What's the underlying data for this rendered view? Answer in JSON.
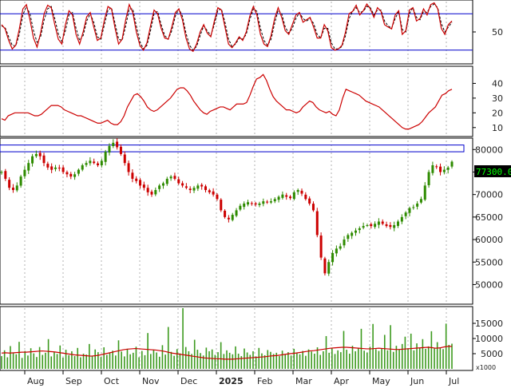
{
  "chart_data": [
    {
      "type": "line",
      "panel": "stochastic",
      "ylim": [
        0,
        100
      ],
      "yticks": [
        50
      ],
      "reference_lines": [
        80,
        20
      ],
      "series": [
        {
          "values": [
            62,
            55,
            36,
            22,
            28,
            55,
            88,
            95,
            70,
            40,
            25,
            48,
            80,
            94,
            90,
            62,
            38,
            30,
            62,
            85,
            78,
            46,
            30,
            50,
            75,
            82,
            58,
            36,
            40,
            70,
            92,
            88,
            56,
            30,
            38,
            70,
            95,
            82,
            50,
            28,
            20,
            32,
            60,
            86,
            80,
            56,
            40,
            38,
            58,
            82,
            88,
            70,
            40,
            22,
            18,
            30,
            50,
            62,
            48,
            42,
            68,
            90,
            86,
            58,
            30,
            24,
            32,
            42,
            36,
            50,
            76,
            92,
            78,
            46,
            30,
            26,
            44,
            72,
            90,
            74,
            52,
            46,
            62,
            78,
            82,
            66,
            70,
            74,
            58,
            40,
            40,
            62,
            52,
            24,
            20,
            22,
            28,
            50,
            80,
            84,
            94,
            78,
            85,
            96,
            88,
            74,
            90,
            84,
            62,
            58,
            55,
            78,
            85,
            46,
            52,
            86,
            90,
            68,
            72,
            88,
            78,
            95,
            98,
            88,
            56,
            46,
            62,
            68
          ]
        },
        {
          "values": [
            60,
            57,
            42,
            28,
            27,
            46,
            78,
            92,
            80,
            52,
            33,
            42,
            70,
            88,
            92,
            72,
            47,
            34,
            52,
            78,
            82,
            56,
            36,
            44,
            68,
            80,
            66,
            42,
            38,
            62,
            86,
            90,
            64,
            38,
            36,
            60,
            88,
            88,
            60,
            34,
            22,
            28,
            52,
            80,
            84,
            62,
            44,
            38,
            52,
            76,
            88,
            76,
            48,
            28,
            20,
            26,
            44,
            60,
            52,
            44,
            62,
            86,
            88,
            66,
            38,
            26,
            30,
            40,
            38,
            46,
            70,
            88,
            84,
            56,
            36,
            28,
            38,
            64,
            86,
            80,
            58,
            48,
            56,
            72,
            82,
            72,
            68,
            72,
            64,
            46,
            40,
            56,
            56,
            32,
            22,
            22,
            26,
            44,
            72,
            84,
            90,
            82,
            84,
            92,
            90,
            78,
            86,
            86,
            68,
            60,
            56,
            72,
            84,
            54,
            50,
            80,
            90,
            74,
            70,
            84,
            82,
            92,
            96,
            90,
            64,
            50,
            58,
            66
          ]
        }
      ]
    },
    {
      "type": "line",
      "panel": "indicator",
      "ylim": [
        5,
        50
      ],
      "yticks": [
        10,
        20,
        30,
        40
      ],
      "series": [
        {
          "values": [
            16,
            15,
            18,
            19,
            20,
            20,
            20,
            20,
            20,
            19,
            18,
            18,
            19,
            21,
            23,
            25,
            25,
            25,
            24,
            22,
            21,
            20,
            19,
            18,
            18,
            17,
            16,
            15,
            14,
            13,
            13,
            14,
            15,
            13,
            12,
            12,
            14,
            18,
            24,
            28,
            32,
            33,
            31,
            28,
            24,
            22,
            21,
            22,
            24,
            26,
            28,
            30,
            33,
            36,
            37,
            37,
            35,
            32,
            28,
            25,
            22,
            20,
            19,
            21,
            22,
            23,
            24,
            24,
            23,
            22,
            24,
            26,
            26,
            26,
            27,
            32,
            38,
            43,
            44,
            46,
            42,
            36,
            31,
            28,
            26,
            24,
            22,
            22,
            21,
            20,
            21,
            24,
            26,
            28,
            27,
            24,
            22,
            21,
            20,
            21,
            19,
            18,
            22,
            30,
            36,
            35,
            34,
            33,
            32,
            30,
            28,
            27,
            26,
            25,
            24,
            22,
            20,
            18,
            16,
            14,
            12,
            10,
            9,
            9,
            10,
            11,
            12,
            14,
            17,
            20,
            22,
            24,
            28,
            32,
            33,
            35,
            36
          ]
        }
      ]
    },
    {
      "type": "line",
      "panel": "price",
      "ylim": [
        46000,
        82000
      ],
      "yticks": [
        50000,
        55000,
        60000,
        65000,
        70000,
        75000,
        80000
      ],
      "last_price": "77300.00",
      "resistance_zone": [
        79500,
        81000
      ],
      "series": [
        {
          "values": [
            75000,
            73500,
            71500,
            71000,
            72000,
            74000,
            75500,
            77000,
            78500,
            79000,
            78500,
            77000,
            76000,
            75500,
            76000,
            75800,
            75000,
            74500,
            74000,
            74500,
            75500,
            76500,
            77000,
            77500,
            77000,
            76500,
            77500,
            79500,
            80800,
            81500,
            80500,
            79000,
            77000,
            75000,
            73500,
            73000,
            72000,
            71500,
            70500,
            70000,
            71000,
            72000,
            72500,
            73500,
            74000,
            73500,
            72500,
            72000,
            71500,
            71000,
            71500,
            72000,
            71800,
            71000,
            70500,
            70000,
            69000,
            66500,
            65000,
            64500,
            65500,
            66500,
            67500,
            68000,
            68300,
            68000,
            67800,
            68000,
            68500,
            68300,
            68500,
            69000,
            69500,
            70000,
            69500,
            69200,
            70500,
            71000,
            70200,
            69000,
            68000,
            66500,
            61000,
            56000,
            52500,
            55000,
            57000,
            58000,
            58500,
            60000,
            61000,
            61500,
            62000,
            62500,
            63000,
            63200,
            63000,
            63500,
            64000,
            63500,
            63000,
            62800,
            63200,
            64000,
            65000,
            66000,
            67000,
            67200,
            68000,
            69000,
            72000,
            75000,
            76500,
            76200,
            75000,
            75500,
            76000,
            77300
          ]
        }
      ]
    },
    {
      "type": "bar",
      "panel": "volume",
      "unit": "x1000",
      "ylim": [
        0,
        20000
      ],
      "yticks": [
        5000,
        10000,
        15000
      ],
      "values": [
        4200,
        6100,
        3800,
        7500,
        5200,
        4800,
        8900,
        3600,
        5900,
        4400,
        6800,
        5100,
        3900,
        7200,
        4600,
        5300,
        9800,
        4100,
        5600,
        4900,
        7700,
        3700,
        6300,
        4500,
        5800,
        4200,
        6900,
        3800,
        5000,
        4700,
        8200,
        4300,
        6400,
        5500,
        3900,
        7100,
        4600,
        5200,
        6000,
        4400,
        9400,
        5700,
        4100,
        6600,
        4800,
        5300,
        7300,
        3800,
        5900,
        4500,
        11800,
        4900,
        6200,
        5400,
        4000,
        7800,
        4700,
        13800,
        5600,
        4300,
        6500,
        5100,
        20000,
        7200,
        5800,
        4900,
        9600,
        6300,
        5200,
        4400,
        7000,
        5800,
        6400,
        4600,
        5500,
        8800,
        4900,
        6100,
        5300,
        4800,
        7400,
        5000,
        4200,
        6700,
        5400,
        4600,
        5800,
        4100,
        6900,
        5100,
        4500,
        6200,
        5600,
        4900,
        5300,
        4200,
        6000,
        4700,
        5500,
        4400,
        6600,
        5200,
        4800,
        5900,
        4300,
        6400,
        5700,
        5000,
        7100,
        4600,
        5800,
        10800,
        5300,
        6700,
        4900,
        6100,
        5500,
        12500,
        6300,
        5000,
        7600,
        5800,
        6900,
        13200,
        6000,
        5400,
        7300,
        14800,
        6500,
        5900,
        6800,
        11200,
        6100,
        14400,
        5600,
        7600,
        6300,
        8200,
        10600,
        6800,
        11600,
        6100,
        8400,
        7000,
        9800,
        6600,
        7400,
        12400,
        6700,
        8800,
        7100,
        6500,
        14900,
        7900,
        8300
      ]
    },
    {
      "type": "line",
      "panel": "volume-average",
      "ylim": [
        0,
        20000
      ],
      "values": [
        5200,
        5300,
        5200,
        5300,
        5400,
        5500,
        5500,
        5600,
        5700,
        5800,
        5900,
        5800,
        5700,
        5600,
        5400,
        5200,
        5000,
        4800,
        4600,
        4500,
        4400,
        4300,
        4200,
        4300,
        4500,
        4800,
        5100,
        5400,
        5700,
        6000,
        6300,
        6500,
        6600,
        6700,
        6600,
        6500,
        6400,
        6300,
        6200,
        6000,
        5800,
        5500,
        5200,
        5000,
        4800,
        4600,
        4400,
        4200,
        4000,
        3800,
        3600,
        3500,
        3400,
        3300,
        3300,
        3200,
        3200,
        3200,
        3300,
        3400,
        3500,
        3600,
        3700,
        3800,
        3900,
        4000,
        4200,
        4300,
        4400,
        4600,
        4800,
        5000,
        5100,
        5300,
        5500,
        5700,
        5900,
        6000,
        6200,
        6400,
        6600,
        6800,
        6900,
        7000,
        7100,
        7100,
        7000,
        6900,
        6800,
        6700,
        6600,
        6600,
        6700,
        6800,
        6700,
        6600,
        6500,
        6400,
        6400,
        6500,
        6600,
        6700,
        6800,
        6900,
        7000,
        7100,
        7000,
        6800,
        6900,
        7200,
        7400,
        7400
      ]
    },
    {
      "type": "axis",
      "panel": "time-axis",
      "labels": [
        "Aug",
        "Sep",
        "Oct",
        "Nov",
        "Dec",
        "2025",
        "Feb",
        "Mar",
        "Apr",
        "May",
        "Jun",
        "Jul"
      ]
    }
  ]
}
